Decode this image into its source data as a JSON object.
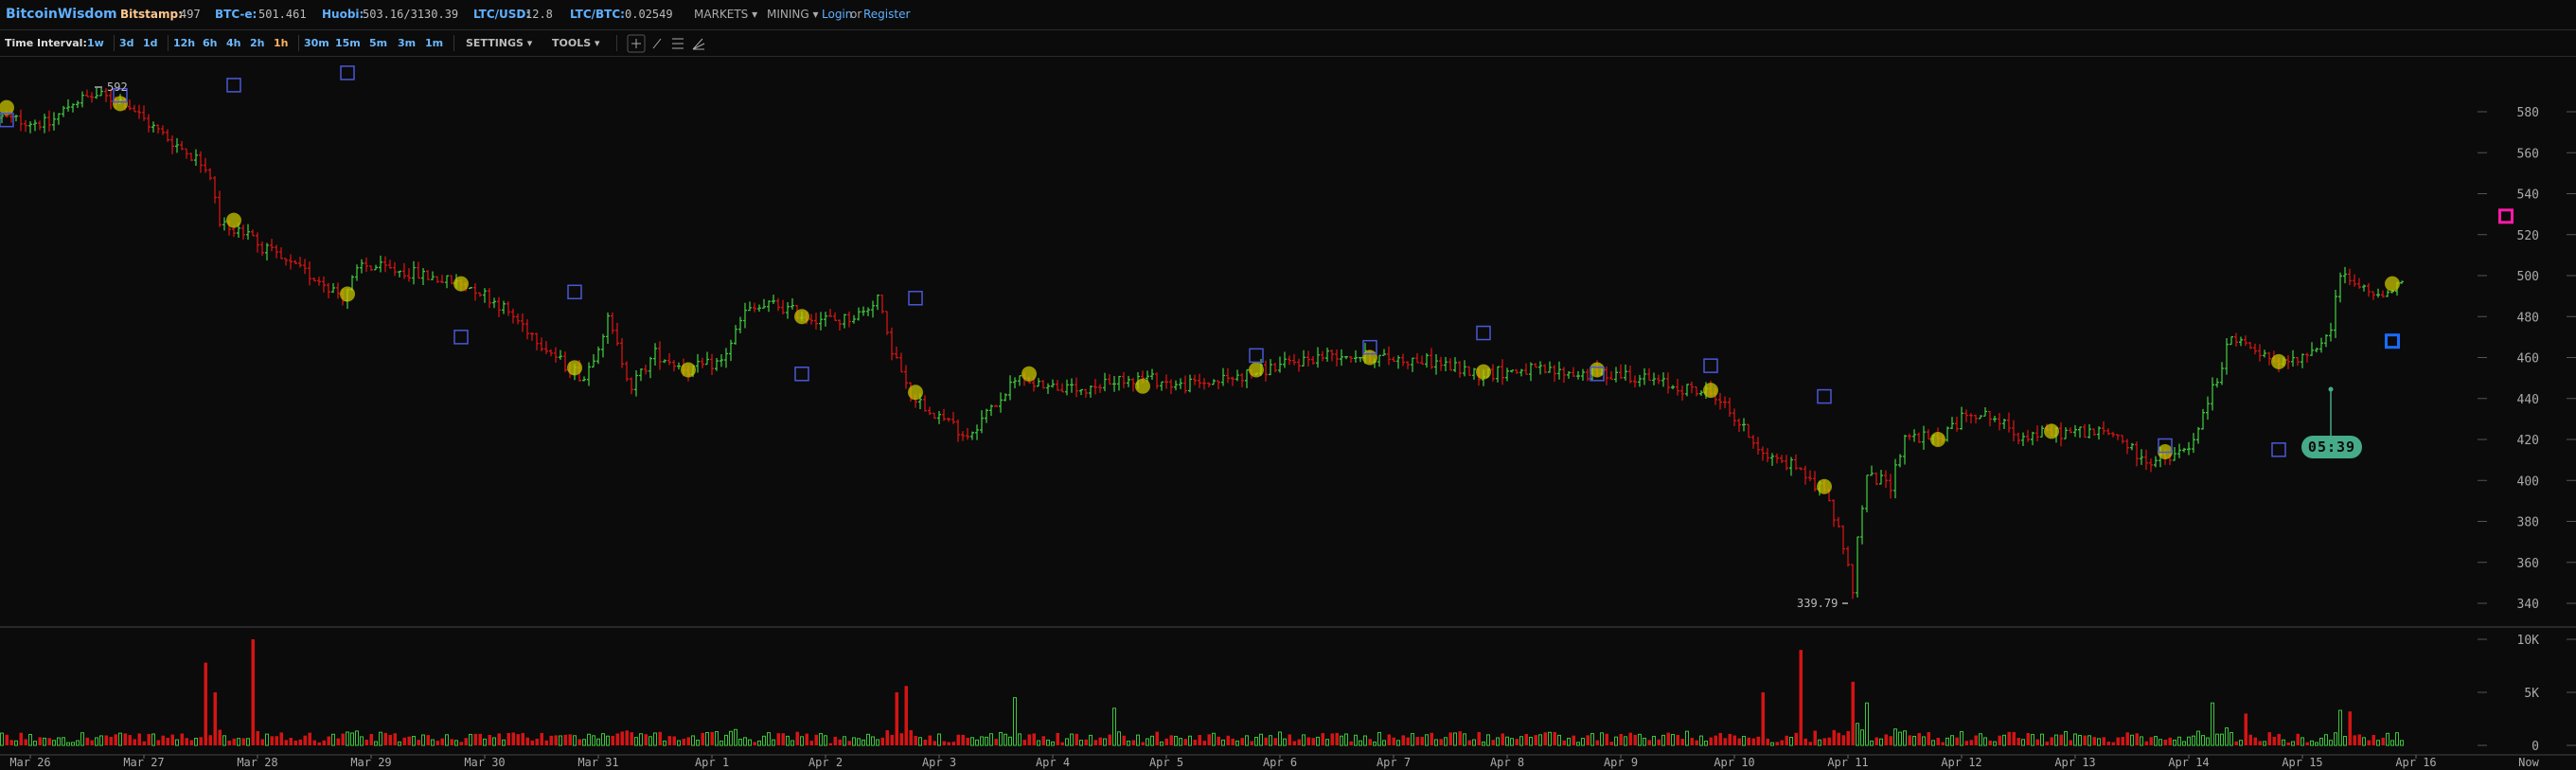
{
  "header": {
    "brand": "BitcoinWisdom",
    "tickers": [
      {
        "label": "Bitstamp:",
        "value": "497",
        "label_color": "#ffc890"
      },
      {
        "label": "BTC-e:",
        "value": "501.461",
        "label_color": "#5fb0ff"
      },
      {
        "label": "Huobi:",
        "value": "503.16/3130.39",
        "label_color": "#5fb0ff"
      },
      {
        "label": "LTC/USD:",
        "value": "12.8",
        "label_color": "#5fb0ff"
      },
      {
        "label": "LTC/BTC:",
        "value": "0.02549",
        "label_color": "#5fb0ff"
      }
    ],
    "markets": "MARKETS ▾",
    "mining": "MINING ▾",
    "login": "Login",
    "or": "or",
    "register": "Register"
  },
  "toolbar": {
    "label": "Time Interval:",
    "intervals": [
      "1w",
      "3d",
      "1d",
      "12h",
      "6h",
      "4h",
      "2h",
      "1h",
      "30m",
      "15m",
      "5m",
      "3m",
      "1m"
    ],
    "active": "1h",
    "settings": "SETTINGS ▾",
    "tools": "TOOLS ▾",
    "tool_icons": [
      "crosshair-icon",
      "trendline-icon",
      "horizontal-lines-icon",
      "fan-icon"
    ]
  },
  "colors": {
    "up": "#3ec43e",
    "down": "#d41414",
    "marker_square": "#4a58d6",
    "marker_circle": "#c8c400",
    "current_square": "#1a6cff",
    "pink_square": "#ff1aa8",
    "countdown": "#45ab88"
  },
  "chart_data": {
    "type": "ohlc",
    "interval": "1h",
    "price_axis": {
      "ticks": [
        580,
        560,
        540,
        520,
        500,
        480,
        460,
        440,
        420,
        400,
        380,
        360,
        340
      ]
    },
    "volume_axis": {
      "ticks": [
        "10K",
        "5K",
        "0"
      ],
      "values": [
        10000,
        5000,
        0
      ]
    },
    "x_ticks": [
      "Mar 26",
      "Mar 27",
      "Mar 28",
      "Mar 29",
      "Mar 30",
      "Mar 31",
      "Apr 1",
      "Apr 2",
      "Apr 3",
      "Apr 4",
      "Apr 5",
      "Apr 6",
      "Apr 7",
      "Apr 8",
      "Apr 9",
      "Apr 10",
      "Apr 11",
      "Apr 12",
      "Apr 13",
      "Apr 14",
      "Apr 15",
      "Apr 16"
    ],
    "now_label": "Now",
    "high_label": "592",
    "low_label": "339.79",
    "countdown": "05:39",
    "price_anchors": [
      [
        "Mar 25 18:00",
        577
      ],
      [
        "Mar 26 04:00",
        574
      ],
      [
        "Mar 26 09:00",
        585
      ],
      [
        "Mar 26 14:00",
        588
      ],
      [
        "Mar 26 20:00",
        585
      ],
      [
        "Mar 27 01:00",
        574
      ],
      [
        "Mar 27 08:00",
        562
      ],
      [
        "Mar 27 13:00",
        554
      ],
      [
        "Mar 27 16:00",
        526
      ],
      [
        "Mar 27 20:00",
        522
      ],
      [
        "Mar 28 01:00",
        514
      ],
      [
        "Mar 28 06:00",
        506
      ],
      [
        "Mar 28 13:00",
        498
      ],
      [
        "Mar 28 18:00",
        490
      ],
      [
        "Mar 28 22:00",
        505
      ],
      [
        "Mar 29 07:00",
        502
      ],
      [
        "Mar 29 15:00",
        498
      ],
      [
        "Mar 29 22:00",
        494
      ],
      [
        "Mar 30 03:00",
        486
      ],
      [
        "Mar 30 09:00",
        474
      ],
      [
        "Mar 30 16:00",
        458
      ],
      [
        "Mar 30 21:00",
        450
      ],
      [
        "Mar 31 02:00",
        478
      ],
      [
        "Mar 31 07:00",
        446
      ],
      [
        "Mar 31 12:00",
        462
      ],
      [
        "Mar 31 19:00",
        454
      ],
      [
        "Apr 1 02:00",
        458
      ],
      [
        "Apr 1 07:00",
        482
      ],
      [
        "Apr 1 13:00",
        486
      ],
      [
        "Apr 1 20:00",
        480
      ],
      [
        "Apr 2 03:00",
        478
      ],
      [
        "Apr 2 08:00",
        482
      ],
      [
        "Apr 2 11:00",
        490
      ],
      [
        "Apr 2 13:00",
        470
      ],
      [
        "Apr 2 18:00",
        442
      ],
      [
        "Apr 3 01:00",
        430
      ],
      [
        "Apr 3 06:00",
        422
      ],
      [
        "Apr 3 12:00",
        438
      ],
      [
        "Apr 3 17:00",
        450
      ],
      [
        "Apr 4 00:00",
        446
      ],
      [
        "Apr 4 07:00",
        442
      ],
      [
        "Apr 4 14:00",
        450
      ],
      [
        "Apr 4 20:00",
        450
      ],
      [
        "Apr 5 03:00",
        446
      ],
      [
        "Apr 5 14:00",
        450
      ],
      [
        "Apr 6 00:00",
        456
      ],
      [
        "Apr 6 11:00",
        462
      ],
      [
        "Apr 6 21:00",
        460
      ],
      [
        "Apr 7 08:00",
        458
      ],
      [
        "Apr 7 18:00",
        452
      ],
      [
        "Apr 8 04:00",
        454
      ],
      [
        "Apr 8 15:00",
        452
      ],
      [
        "Apr 9 01:00",
        452
      ],
      [
        "Apr 9 11:00",
        446
      ],
      [
        "Apr 9 20:00",
        442
      ],
      [
        "Apr 10 03:00",
        422
      ],
      [
        "Apr 10 08:00",
        410
      ],
      [
        "Apr 10 14:00",
        406
      ],
      [
        "Apr 10 19:00",
        394
      ],
      [
        "Apr 10 22:00",
        378
      ],
      [
        "Apr 11 01:00",
        346
      ],
      [
        "Apr 11 02:00",
        370
      ],
      [
        "Apr 11 04:00",
        402
      ],
      [
        "Apr 11 09:00",
        398
      ],
      [
        "Apr 11 12:00",
        422
      ],
      [
        "Apr 11 19:00",
        420
      ],
      [
        "Apr 12 02:00",
        434
      ],
      [
        "Apr 12 07:00",
        430
      ],
      [
        "Apr 12 12:00",
        422
      ],
      [
        "Apr 12 19:00",
        423
      ],
      [
        "Apr 13 02:00",
        424
      ],
      [
        "Apr 13 09:00",
        422
      ],
      [
        "Apr 13 14:00",
        410
      ],
      [
        "Apr 13 20:00",
        410
      ],
      [
        "Apr 14 01:00",
        418
      ],
      [
        "Apr 14 04:00",
        438
      ],
      [
        "Apr 14 09:00",
        470
      ],
      [
        "Apr 14 15:00",
        462
      ],
      [
        "Apr 14 20:00",
        458
      ],
      [
        "Apr 15 03:00",
        462
      ],
      [
        "Apr 15 06:00",
        474
      ],
      [
        "Apr 15 08:00",
        502
      ],
      [
        "Apr 15 12:00",
        494
      ],
      [
        "Apr 15 15:00",
        490
      ],
      [
        "Apr 15 21:00",
        497
      ]
    ],
    "volume_spikes": [
      [
        "Mar 27 13:00",
        7800
      ],
      [
        "Mar 27 15:00",
        5000
      ],
      [
        "Mar 27 23:00",
        10000
      ],
      [
        "Apr 2 15:00",
        5000
      ],
      [
        "Apr 2 17:00",
        5600
      ],
      [
        "Apr 3 16:00",
        4500
      ],
      [
        "Apr 4 13:00",
        3500
      ],
      [
        "Apr 10 06:00",
        5000
      ],
      [
        "Apr 10 14:00",
        9000
      ],
      [
        "Apr 11 01:00",
        6000
      ],
      [
        "Apr 11 04:00",
        4000
      ],
      [
        "Apr 14 05:00",
        4000
      ],
      [
        "Apr 14 12:00",
        3000
      ],
      [
        "Apr 15 08:00",
        3300
      ],
      [
        "Apr 15 10:00",
        3200
      ]
    ],
    "square_markers": [
      [
        "Mar 25 19:00",
        576
      ],
      [
        "Mar 26 19:00",
        588
      ],
      [
        "Mar 27 19:00",
        593
      ],
      [
        "Mar 28 19:00",
        599
      ],
      [
        "Mar 29 19:00",
        470
      ],
      [
        "Mar 30 19:00",
        492
      ],
      [
        "Apr 1 19:00",
        452
      ],
      [
        "Apr 2 19:00",
        489
      ],
      [
        "Apr 5 19:00",
        461
      ],
      [
        "Apr 6 19:00",
        465
      ],
      [
        "Apr 7 19:00",
        472
      ],
      [
        "Apr 8 19:00",
        452
      ],
      [
        "Apr 9 19:00",
        456
      ],
      [
        "Apr 10 19:00",
        441
      ],
      [
        "Apr 13 19:00",
        417
      ],
      [
        "Apr 14 19:00",
        415
      ]
    ],
    "current_marker": [
      "Apr 15 19:00",
      468
    ],
    "pink_marker": [
      "Apr 16 19:00",
      529
    ],
    "circle_markers": [
      [
        "Mar 25 19:00",
        582
      ],
      [
        "Mar 26 19:00",
        584
      ],
      [
        "Mar 27 19:00",
        527
      ],
      [
        "Mar 28 19:00",
        491
      ],
      [
        "Mar 29 19:00",
        496
      ],
      [
        "Mar 30 19:00",
        455
      ],
      [
        "Mar 31 19:00",
        454
      ],
      [
        "Apr 1 19:00",
        480
      ],
      [
        "Apr 2 19:00",
        443
      ],
      [
        "Apr 3 19:00",
        452
      ],
      [
        "Apr 4 19:00",
        446
      ],
      [
        "Apr 5 19:00",
        454
      ],
      [
        "Apr 6 19:00",
        460
      ],
      [
        "Apr 7 19:00",
        453
      ],
      [
        "Apr 8 19:00",
        454
      ],
      [
        "Apr 9 19:00",
        444
      ],
      [
        "Apr 10 19:00",
        397
      ],
      [
        "Apr 11 19:00",
        420
      ],
      [
        "Apr 12 19:00",
        424
      ],
      [
        "Apr 13 19:00",
        414
      ],
      [
        "Apr 14 19:00",
        458
      ],
      [
        "Apr 15 19:00",
        496
      ]
    ]
  }
}
